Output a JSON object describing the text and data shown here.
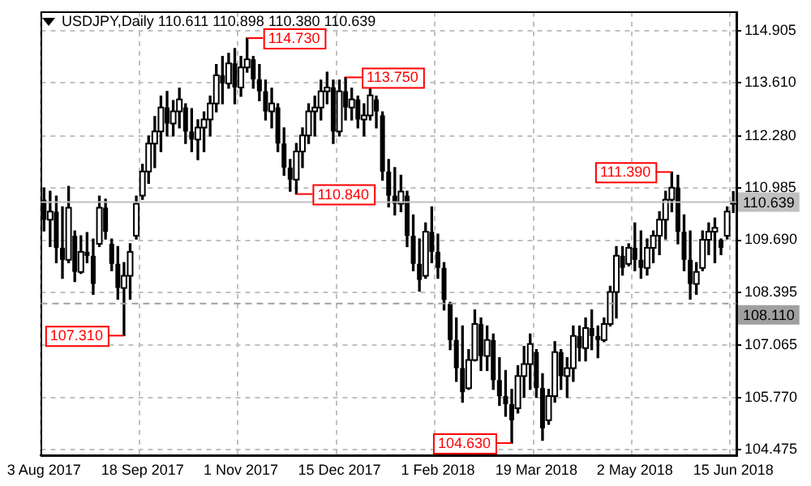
{
  "chart_data": {
    "type": "candlestick",
    "title": "USDJPY,Daily",
    "subtitle": "110.611 110.898 110.380 110.639",
    "categories": [
      "3 Aug 2017",
      null,
      null,
      null,
      null,
      null,
      null,
      null,
      null,
      null,
      null,
      null,
      null,
      null,
      null,
      null,
      "18 Sep 2017",
      null,
      null,
      null,
      null,
      null,
      null,
      null,
      null,
      null,
      null,
      null,
      null,
      null,
      null,
      null,
      "1 Nov 2017",
      null,
      null,
      null,
      null,
      null,
      null,
      null,
      null,
      null,
      null,
      null,
      null,
      null,
      null,
      null,
      "15 Dec 2017",
      null,
      null,
      null,
      null,
      null,
      null,
      null,
      null,
      null,
      null,
      null,
      null,
      null,
      null,
      null,
      "1 Feb 2018",
      null,
      null,
      null,
      null,
      null,
      null,
      null,
      null,
      null,
      null,
      null,
      null,
      null,
      null,
      null,
      "19 Mar 2018",
      null,
      null,
      null,
      null,
      null,
      null,
      null,
      null,
      null,
      null,
      null,
      null,
      null,
      null,
      null,
      "2 May 2018",
      null,
      null,
      null,
      null,
      null,
      null,
      null,
      null,
      null,
      null,
      null,
      null,
      null,
      null,
      null,
      "15 Jun 2018"
    ],
    "ohlc": [
      [
        110.7,
        110.99,
        109.92,
        110.2
      ],
      [
        110.2,
        110.91,
        109.53,
        110.4
      ],
      [
        110.4,
        110.79,
        109.13,
        109.5
      ],
      [
        109.5,
        110.52,
        108.74,
        109.2
      ],
      [
        109.2,
        111.03,
        109.13,
        110.5
      ],
      [
        109.8,
        109.92,
        108.66,
        108.9
      ],
      [
        108.9,
        109.8,
        108.86,
        109.4
      ],
      [
        109.4,
        109.88,
        109.13,
        109.3
      ],
      [
        109.3,
        109.72,
        108.34,
        108.6
      ],
      [
        109.6,
        110.79,
        109.53,
        110.5
      ],
      [
        110.5,
        110.71,
        109.72,
        109.9
      ],
      [
        109.6,
        109.72,
        108.93,
        109.1
      ],
      [
        109.1,
        109.53,
        108.22,
        108.5
      ],
      [
        108.5,
        109.13,
        107.31,
        108.8
      ],
      [
        108.8,
        109.6,
        108.22,
        109.4
      ],
      [
        109.8,
        110.79,
        109.72,
        110.6
      ],
      [
        110.8,
        111.58,
        110.71,
        111.4
      ],
      [
        111.4,
        112.29,
        111.11,
        112.1
      ],
      [
        112.1,
        112.77,
        111.5,
        112.4
      ],
      [
        112.4,
        113.28,
        111.9,
        113.0
      ],
      [
        113.0,
        113.4,
        112.29,
        112.6
      ],
      [
        112.6,
        113.17,
        112.29,
        112.9
      ],
      [
        112.9,
        113.48,
        112.49,
        113.2
      ],
      [
        113.0,
        113.09,
        112.1,
        112.4
      ],
      [
        112.4,
        112.97,
        111.9,
        112.2
      ],
      [
        112.2,
        112.69,
        111.7,
        112.5
      ],
      [
        112.5,
        112.89,
        111.9,
        112.7
      ],
      [
        112.7,
        113.28,
        112.29,
        113.1
      ],
      [
        113.1,
        114.07,
        112.89,
        113.8
      ],
      [
        113.8,
        114.27,
        113.09,
        113.6
      ],
      [
        113.6,
        114.35,
        113.48,
        114.1
      ],
      [
        114.1,
        114.47,
        113.09,
        113.5
      ],
      [
        113.5,
        114.27,
        113.28,
        114.0
      ],
      [
        114.0,
        114.73,
        113.88,
        114.2
      ],
      [
        114.2,
        114.27,
        113.48,
        113.7
      ],
      [
        113.7,
        114.07,
        113.17,
        113.4
      ],
      [
        113.4,
        113.68,
        112.69,
        112.9
      ],
      [
        112.9,
        113.48,
        112.49,
        113.1
      ],
      [
        113.0,
        113.09,
        111.9,
        112.1
      ],
      [
        112.1,
        112.49,
        111.31,
        111.5
      ],
      [
        111.5,
        111.7,
        110.91,
        111.2
      ],
      [
        111.2,
        112.1,
        110.84,
        111.9
      ],
      [
        111.9,
        112.49,
        111.5,
        112.3
      ],
      [
        112.3,
        113.09,
        112.1,
        112.9
      ],
      [
        112.9,
        113.28,
        112.29,
        113.0
      ],
      [
        113.0,
        113.68,
        112.69,
        113.4
      ],
      [
        113.4,
        113.88,
        113.09,
        113.5
      ],
      [
        113.5,
        113.68,
        112.1,
        112.4
      ],
      [
        112.4,
        113.68,
        112.29,
        113.4
      ],
      [
        113.4,
        113.75,
        112.69,
        113.0
      ],
      [
        113.0,
        113.48,
        112.69,
        113.2
      ],
      [
        113.2,
        113.28,
        112.49,
        112.7
      ],
      [
        112.7,
        113.09,
        112.29,
        112.8
      ],
      [
        112.8,
        113.48,
        112.69,
        113.3
      ],
      [
        113.2,
        113.28,
        112.49,
        112.9
      ],
      [
        112.8,
        112.89,
        111.19,
        111.4
      ],
      [
        111.4,
        111.7,
        110.52,
        110.8
      ],
      [
        110.8,
        111.5,
        110.32,
        110.6
      ],
      [
        110.6,
        111.31,
        110.4,
        110.9
      ],
      [
        110.8,
        110.91,
        109.53,
        109.8
      ],
      [
        109.8,
        110.32,
        108.93,
        109.1
      ],
      [
        109.1,
        109.72,
        108.42,
        108.7
      ],
      [
        108.8,
        110.12,
        108.74,
        109.9
      ],
      [
        109.9,
        110.52,
        109.13,
        109.4
      ],
      [
        109.4,
        109.84,
        108.74,
        109.0
      ],
      [
        109.0,
        109.13,
        107.95,
        108.2
      ],
      [
        108.1,
        108.14,
        106.96,
        107.2
      ],
      [
        107.2,
        107.75,
        106.17,
        106.5
      ],
      [
        106.5,
        107.55,
        105.65,
        105.9
      ],
      [
        106.0,
        106.96,
        105.97,
        106.7
      ],
      [
        106.7,
        107.95,
        106.68,
        107.6
      ],
      [
        107.6,
        107.75,
        106.44,
        106.8
      ],
      [
        106.8,
        107.55,
        106.44,
        107.2
      ],
      [
        107.2,
        107.35,
        105.97,
        106.2
      ],
      [
        106.2,
        106.76,
        105.57,
        105.8
      ],
      [
        105.8,
        106.44,
        105.3,
        105.6
      ],
      [
        105.6,
        105.97,
        104.63,
        105.2
      ],
      [
        105.5,
        106.56,
        105.38,
        106.3
      ],
      [
        106.3,
        107.04,
        105.77,
        106.6
      ],
      [
        106.6,
        107.35,
        105.97,
        107.1
      ],
      [
        106.9,
        106.96,
        105.77,
        106.0
      ],
      [
        106.0,
        106.36,
        104.7,
        105.0
      ],
      [
        105.2,
        105.97,
        105.1,
        105.8
      ],
      [
        105.8,
        107.16,
        105.65,
        106.9
      ],
      [
        106.9,
        106.96,
        105.97,
        106.3
      ],
      [
        106.3,
        106.76,
        105.77,
        106.5
      ],
      [
        106.5,
        107.55,
        106.17,
        107.3
      ],
      [
        107.3,
        107.55,
        106.68,
        107.0
      ],
      [
        107.0,
        107.75,
        106.68,
        107.5
      ],
      [
        107.5,
        107.95,
        106.96,
        107.3
      ],
      [
        107.3,
        107.55,
        106.76,
        107.2
      ],
      [
        107.2,
        107.75,
        107.16,
        107.6
      ],
      [
        107.6,
        108.54,
        107.55,
        108.4
      ],
      [
        108.4,
        109.53,
        107.75,
        109.3
      ],
      [
        109.3,
        109.53,
        108.82,
        109.0
      ],
      [
        109.1,
        109.6,
        109.05,
        109.5
      ],
      [
        109.5,
        110.12,
        108.93,
        109.2
      ],
      [
        109.2,
        109.92,
        108.74,
        109.0
      ],
      [
        109.0,
        109.72,
        108.82,
        109.5
      ],
      [
        109.5,
        109.92,
        109.13,
        109.8
      ],
      [
        109.8,
        110.4,
        109.33,
        110.2
      ],
      [
        110.2,
        110.91,
        109.72,
        110.7
      ],
      [
        110.7,
        111.39,
        110.4,
        111.0
      ],
      [
        111.0,
        111.31,
        109.6,
        109.9
      ],
      [
        109.9,
        110.32,
        108.93,
        109.2
      ],
      [
        109.2,
        109.92,
        108.22,
        108.6
      ],
      [
        108.6,
        109.13,
        108.34,
        108.9
      ],
      [
        109.0,
        109.92,
        108.93,
        109.7
      ],
      [
        109.7,
        110.12,
        109.33,
        109.9
      ],
      [
        109.9,
        110.24,
        109.13,
        110.0
      ],
      [
        109.7,
        109.72,
        109.33,
        109.5
      ],
      [
        109.8,
        110.52,
        109.72,
        110.4
      ],
      [
        110.611,
        110.898,
        110.38,
        110.639
      ]
    ],
    "color": "#000000",
    "colors": [
      "#000000",
      "#ffffff",
      "#000000",
      "#000000",
      "#ffffff",
      "#000000",
      "#ffffff",
      "#000000",
      "#000000",
      "#ffffff",
      "#000000",
      "#000000",
      "#000000",
      "#ffffff",
      "#ffffff",
      "#ffffff",
      "#ffffff",
      "#ffffff",
      "#ffffff",
      "#ffffff",
      "#000000",
      "#ffffff",
      "#ffffff",
      "#000000",
      "#000000",
      "#ffffff",
      "#ffffff",
      "#ffffff",
      "#ffffff",
      "#000000",
      "#ffffff",
      "#000000",
      "#ffffff",
      "#ffffff",
      "#000000",
      "#000000",
      "#000000",
      "#ffffff",
      "#000000",
      "#000000",
      "#000000",
      "#ffffff",
      "#ffffff",
      "#ffffff",
      "#ffffff",
      "#ffffff",
      "#ffffff",
      "#000000",
      "#ffffff",
      "#000000",
      "#ffffff",
      "#000000",
      "#ffffff",
      "#ffffff",
      "#000000",
      "#000000",
      "#000000",
      "#000000",
      "#ffffff",
      "#000000",
      "#000000",
      "#000000",
      "#ffffff",
      "#000000",
      "#000000",
      "#000000",
      "#000000",
      "#000000",
      "#000000",
      "#ffffff",
      "#ffffff",
      "#000000",
      "#ffffff",
      "#000000",
      "#000000",
      "#000000",
      "#000000",
      "#ffffff",
      "#ffffff",
      "#ffffff",
      "#000000",
      "#000000",
      "#ffffff",
      "#ffffff",
      "#000000",
      "#ffffff",
      "#ffffff",
      "#000000",
      "#ffffff",
      "#000000",
      "#000000",
      "#ffffff",
      "#ffffff",
      "#ffffff",
      "#000000",
      "#ffffff",
      "#000000",
      "#000000",
      "#ffffff",
      "#ffffff",
      "#ffffff",
      "#ffffff",
      "#ffffff",
      "#000000",
      "#000000",
      "#000000",
      "#ffffff",
      "#ffffff",
      "#ffffff",
      "#ffffff",
      "#000000",
      "#ffffff",
      "#ffffff"
    ],
    "ylim": [
      104.32,
      115.38
    ],
    "yticks": [
      114.905,
      {
        "value": 113.61,
        "label": "113.610"
      },
      {
        "value": 112.28,
        "label": "112.280"
      },
      110.985,
      {
        "value": 109.69,
        "label": "109.690"
      },
      108.395,
      107.065,
      {
        "value": 105.77,
        "label": "105.770"
      },
      104.475
    ],
    "grid": true,
    "ref_lines": [
      {
        "axis": "y",
        "value": 110.639,
        "label": "110.639",
        "color": "#c0c0c0",
        "line_style": "solid"
      },
      {
        "axis": "y",
        "value": 108.11,
        "label": "108.110",
        "color": "#a0a0a0",
        "line_style": "dashed"
      }
    ],
    "annotations": [
      "114.730",
      "113.750",
      "110.840",
      "107.310",
      "104.630",
      "111.390"
    ]
  }
}
